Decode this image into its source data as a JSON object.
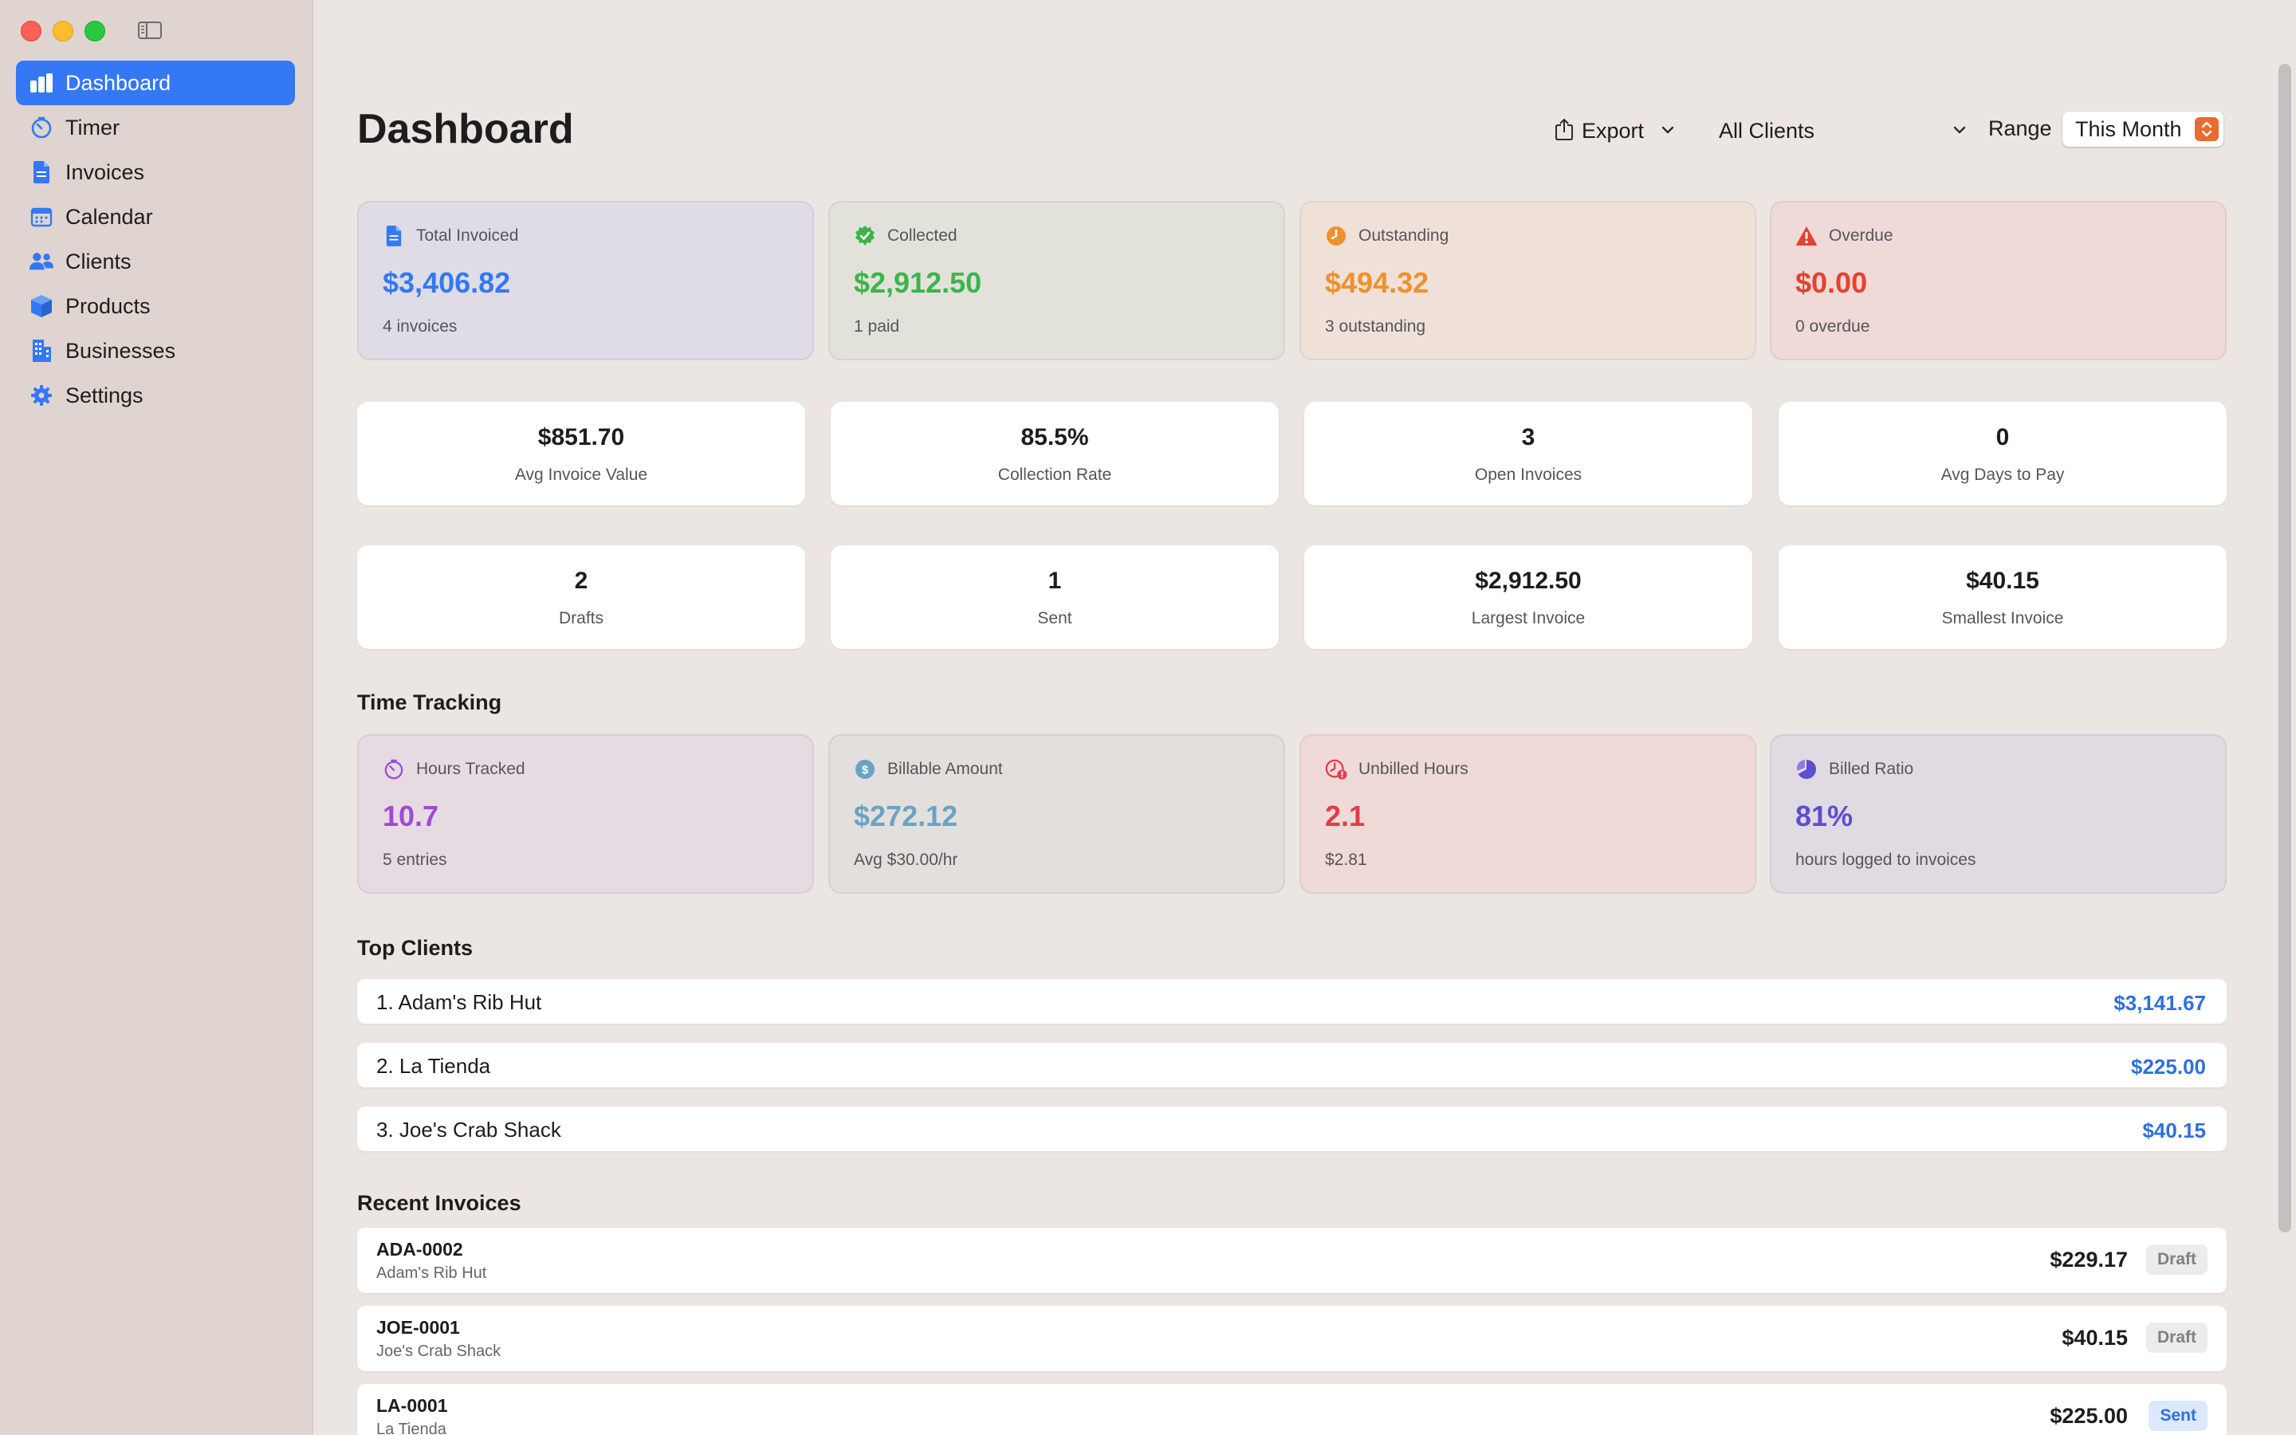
{
  "sidebar": {
    "items": [
      {
        "label": "Dashboard",
        "icon": "dashboard-chart-icon",
        "active": true
      },
      {
        "label": "Timer",
        "icon": "timer-icon",
        "active": false
      },
      {
        "label": "Invoices",
        "icon": "document-icon",
        "active": false
      },
      {
        "label": "Calendar",
        "icon": "calendar-icon",
        "active": false
      },
      {
        "label": "Clients",
        "icon": "people-icon",
        "active": false
      },
      {
        "label": "Products",
        "icon": "box-icon",
        "active": false
      },
      {
        "label": "Businesses",
        "icon": "building-icon",
        "active": false
      },
      {
        "label": "Settings",
        "icon": "gear-icon",
        "active": false
      }
    ]
  },
  "header": {
    "title": "Dashboard",
    "export_label": "Export",
    "client_filter": "All Clients",
    "range_label": "Range",
    "range_value": "This Month"
  },
  "summary_cards": [
    {
      "label": "Total Invoiced",
      "value": "$3,406.82",
      "sub": "4 invoices",
      "icon": "document-icon",
      "color": "#3478f6",
      "bg": "#dfdce6"
    },
    {
      "label": "Collected",
      "value": "$2,912.50",
      "sub": "1 paid",
      "icon": "checkmark-seal-icon",
      "color": "#3cb44b",
      "bg": "#e2e2da"
    },
    {
      "label": "Outstanding",
      "value": "$494.32",
      "sub": "3 outstanding",
      "icon": "clock-icon",
      "color": "#f0902c",
      "bg": "#efe1d8"
    },
    {
      "label": "Overdue",
      "value": "$0.00",
      "sub": "0 overdue",
      "icon": "warning-triangle-icon",
      "color": "#e5412f",
      "bg": "#efdad8"
    }
  ],
  "metrics_row1": [
    {
      "value": "$851.70",
      "label": "Avg Invoice Value"
    },
    {
      "value": "85.5%",
      "label": "Collection Rate"
    },
    {
      "value": "3",
      "label": "Open Invoices"
    },
    {
      "value": "0",
      "label": "Avg Days to Pay"
    }
  ],
  "metrics_row2": [
    {
      "value": "2",
      "label": "Drafts"
    },
    {
      "value": "1",
      "label": "Sent"
    },
    {
      "value": "$2,912.50",
      "label": "Largest Invoice"
    },
    {
      "value": "$40.15",
      "label": "Smallest Invoice"
    }
  ],
  "time_tracking": {
    "title": "Time Tracking",
    "cards": [
      {
        "label": "Hours Tracked",
        "value": "10.7",
        "sub": "5 entries",
        "icon": "timer-icon",
        "color": "#a149d6",
        "bg": "#e6dbe2"
      },
      {
        "label": "Billable Amount",
        "value": "$272.12",
        "sub": "Avg $30.00/hr",
        "icon": "dollar-circle-icon",
        "color": "#6aa3c4",
        "bg": "#e2dfdd"
      },
      {
        "label": "Unbilled Hours",
        "value": "2.1",
        "sub": "$2.81",
        "icon": "clock-alert-icon",
        "color": "#e23b4c",
        "bg": "#efdad8"
      },
      {
        "label": "Billed Ratio",
        "value": "81%",
        "sub": "hours logged to invoices",
        "icon": "pie-chart-icon",
        "color": "#5b4fcf",
        "bg": "#e1dae2"
      }
    ]
  },
  "top_clients": {
    "title": "Top Clients",
    "items": [
      {
        "name": "1. Adam's Rib Hut",
        "amount": "$3,141.67"
      },
      {
        "name": "2. La Tienda",
        "amount": "$225.00"
      },
      {
        "name": "3. Joe's Crab Shack",
        "amount": "$40.15"
      }
    ]
  },
  "recent_invoices": {
    "title": "Recent Invoices",
    "items": [
      {
        "number": "ADA-0002",
        "client": "Adam's Rib Hut",
        "amount": "$229.17",
        "status": "Draft"
      },
      {
        "number": "JOE-0001",
        "client": "Joe's Crab Shack",
        "amount": "$40.15",
        "status": "Draft"
      },
      {
        "number": "LA-0001",
        "client": "La Tienda",
        "amount": "$225.00",
        "status": "Sent"
      }
    ]
  }
}
